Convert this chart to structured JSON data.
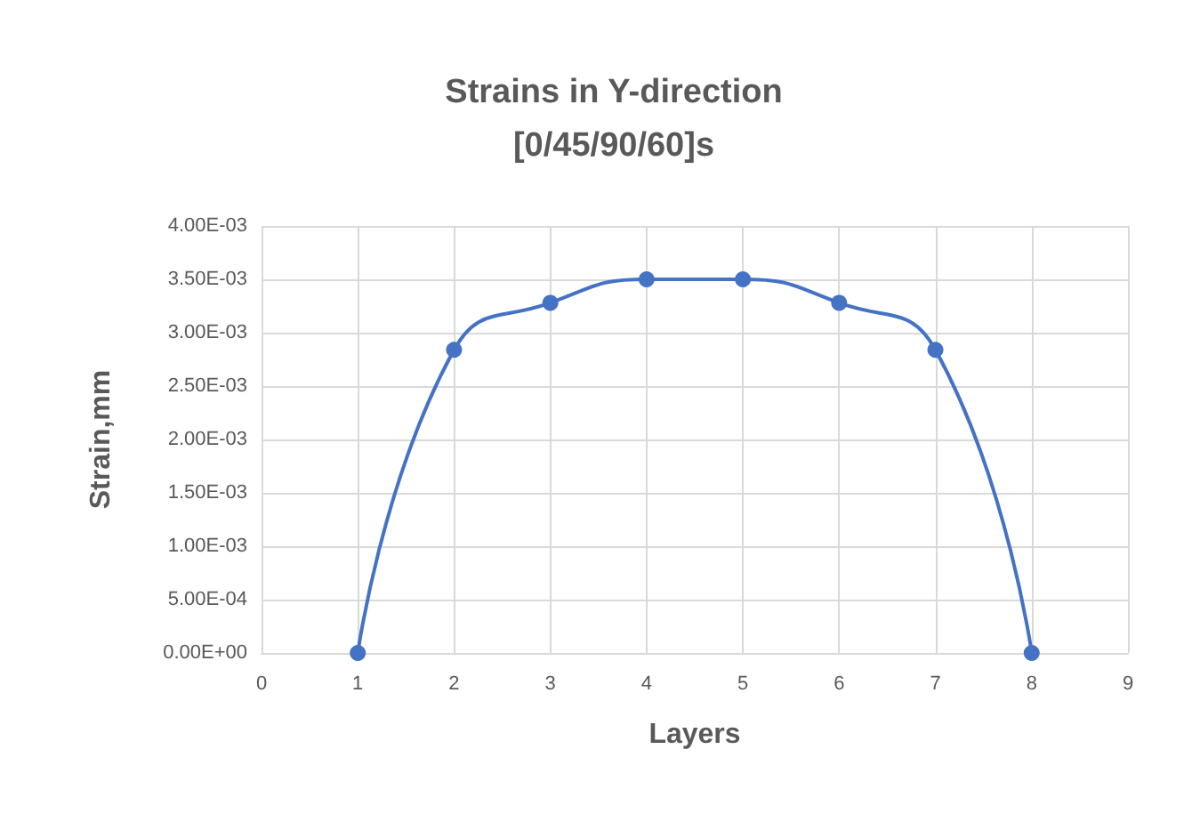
{
  "chart_data": {
    "type": "line",
    "title": "Strains in Y-direction\n[0/45/90/60]s",
    "xlabel": "Layers",
    "ylabel": "Strain,mm",
    "x": [
      1,
      2,
      3,
      4,
      5,
      6,
      7,
      8
    ],
    "series": [
      {
        "color": "#4472c4",
        "values": [
          0,
          0.00284,
          0.00328,
          0.0035,
          0.0035,
          0.00328,
          0.00284,
          0
        ]
      }
    ],
    "xlim": [
      0,
      9
    ],
    "xticks": [
      0,
      1,
      2,
      3,
      4,
      5,
      6,
      7,
      8,
      9
    ],
    "ylim": [
      0,
      0.004
    ],
    "yticks": [
      {
        "value": 0,
        "label": "0.00E+00"
      },
      {
        "value": 0.0005,
        "label": "5.00E-04"
      },
      {
        "value": 0.001,
        "label": "1.00E-03"
      },
      {
        "value": 0.0015,
        "label": "1.50E-03"
      },
      {
        "value": 0.002,
        "label": "2.00E-03"
      },
      {
        "value": 0.0025,
        "label": "2.50E-03"
      },
      {
        "value": 0.003,
        "label": "3.00E-03"
      },
      {
        "value": 0.0035,
        "label": "3.50E-03"
      },
      {
        "value": 0.004,
        "label": "4.00E-03"
      }
    ],
    "grid": true,
    "marker": "circle",
    "line_style": "solid"
  }
}
